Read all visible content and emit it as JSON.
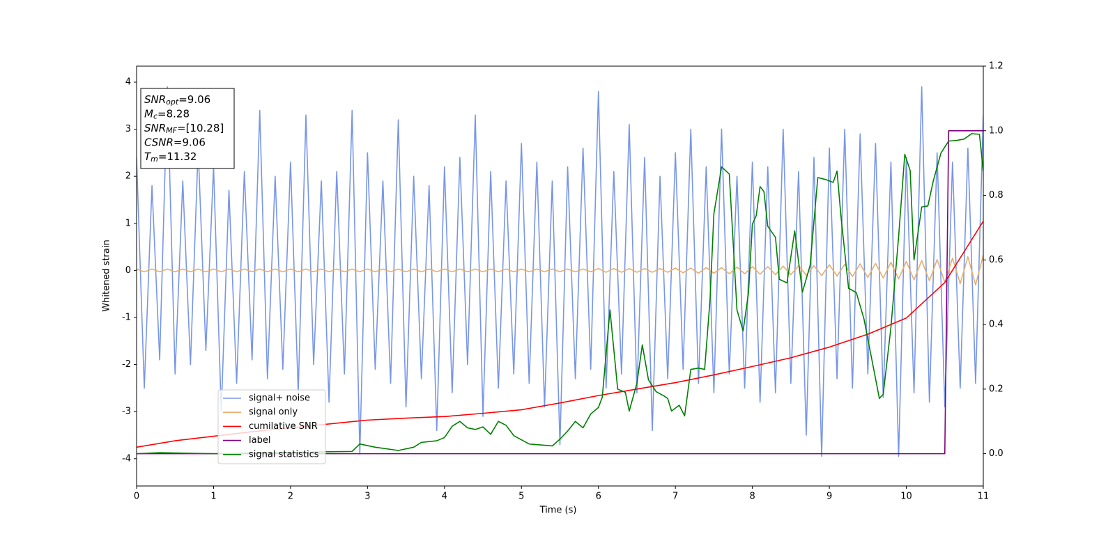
{
  "chart_data": {
    "type": "line",
    "xlabel": "Time (s)",
    "ylabel": "Whitened strain",
    "xlim": [
      0,
      11
    ],
    "ylim": [
      -4.58,
      4.34
    ],
    "y2lim": [
      -0.1,
      1.2
    ],
    "xticks": [
      0,
      1,
      2,
      3,
      4,
      5,
      6,
      7,
      8,
      9,
      10,
      11
    ],
    "yticks": [
      -4,
      -3,
      -2,
      -1,
      0,
      1,
      2,
      3,
      4
    ],
    "y2ticks": [
      {
        "value": 0,
        "label": "0.0"
      },
      0.2,
      0.4,
      0.6,
      0.8,
      {
        "value": 1,
        "label": "1.0"
      },
      1.2
    ],
    "legend": "lower left",
    "annotations": [
      {
        "main": "SNR",
        "sub": "opt",
        "rest": "=9.06"
      },
      {
        "main": "M",
        "sub": "c",
        "rest": "=8.28"
      },
      {
        "main": "SNR",
        "sub": "MF",
        "rest": "=[10.28]"
      },
      {
        "main": "CSNR",
        "sub": "",
        "rest": "=9.06"
      },
      {
        "main": "T",
        "sub": "m",
        "rest": "=11.32"
      }
    ],
    "x": [
      0,
      0.1,
      0.2,
      0.3,
      0.4,
      0.5,
      0.6,
      0.7,
      0.8,
      0.9,
      1,
      1.1,
      1.2,
      1.3,
      1.4,
      1.5,
      1.6,
      1.7,
      1.8,
      1.9,
      2,
      2.1,
      2.2,
      2.3,
      2.4,
      2.5,
      2.6,
      2.7,
      2.8,
      2.9,
      3,
      3.1,
      3.2,
      3.3,
      3.4,
      3.5,
      3.6,
      3.7,
      3.8,
      3.9,
      4,
      4.1,
      4.2,
      4.3,
      4.4,
      4.5,
      4.6,
      4.7,
      4.8,
      4.9,
      5,
      5.1,
      5.2,
      5.3,
      5.4,
      5.5,
      5.6,
      5.7,
      5.8,
      5.9,
      6,
      6.1,
      6.2,
      6.3,
      6.4,
      6.5,
      6.6,
      6.7,
      6.8,
      6.9,
      7,
      7.1,
      7.2,
      7.3,
      7.4,
      7.5,
      7.6,
      7.7,
      7.8,
      7.9,
      8,
      8.1,
      8.2,
      8.3,
      8.4,
      8.5,
      8.6,
      8.7,
      8.8,
      8.9,
      9,
      9.1,
      9.2,
      9.3,
      9.4,
      9.5,
      9.6,
      9.7,
      9.8,
      9.9,
      10,
      10.1,
      10.2,
      10.3,
      10.4,
      10.5,
      10.6,
      10.7,
      10.8,
      10.9,
      11
    ],
    "series": [
      {
        "name": "signal+ noise",
        "color": "#7896e8",
        "width": 1.6,
        "values": [
          2.4,
          -2.5,
          1.8,
          -1.9,
          3.9,
          -2.2,
          1.9,
          -2.0,
          2.6,
          -1.7,
          2.2,
          -3.0,
          1.7,
          -2.4,
          2.1,
          -1.9,
          3.4,
          -2.3,
          2.0,
          -2.1,
          2.3,
          -2.6,
          3.3,
          -2.0,
          1.9,
          -2.8,
          2.1,
          -2.2,
          3.4,
          -3.9,
          2.5,
          -2.1,
          1.9,
          -2.4,
          3.2,
          -2.9,
          2.0,
          -2.3,
          1.8,
          -3.4,
          2.2,
          -2.6,
          2.4,
          -2.0,
          3.3,
          -3.1,
          2.1,
          -2.5,
          1.9,
          -2.2,
          2.7,
          -2.4,
          2.3,
          -2.9,
          1.9,
          -3.7,
          2.2,
          -2.3,
          2.6,
          -2.1,
          3.8,
          -2.5,
          2.1,
          -2.2,
          3.1,
          -2.6,
          2.4,
          -3.4,
          2.0,
          -2.3,
          2.5,
          -2.1,
          3.0,
          -2.4,
          2.2,
          -2.6,
          3.0,
          -2.2,
          2.0,
          -2.5,
          2.3,
          -2.8,
          2.2,
          -2.6,
          3.0,
          -2.4,
          2.1,
          -3.5,
          2.4,
          -3.95,
          2.6,
          -2.3,
          3.0,
          -2.5,
          2.9,
          -2.2,
          2.7,
          -2.7,
          2.3,
          -3.95,
          2.4,
          -2.6,
          3.9,
          -2.8,
          2.5,
          -2.9,
          2.3,
          -2.5,
          2.6,
          -2.4,
          3.3
        ]
      },
      {
        "name": "signal only",
        "color": "#e6ae6e",
        "width": 1.6,
        "values": [
          0.03,
          -0.03,
          0.03,
          -0.03,
          0.03,
          -0.03,
          0.03,
          -0.03,
          0.03,
          -0.03,
          0.03,
          -0.03,
          0.03,
          -0.03,
          0.03,
          -0.03,
          0.03,
          -0.03,
          0.03,
          -0.03,
          0.03,
          -0.03,
          0.03,
          -0.03,
          0.03,
          -0.03,
          0.03,
          -0.03,
          0.03,
          -0.03,
          0.03,
          -0.03,
          0.03,
          -0.03,
          0.03,
          -0.03,
          0.03,
          -0.03,
          0.03,
          -0.03,
          0.03,
          -0.03,
          0.03,
          -0.03,
          0.03,
          -0.03,
          0.03,
          -0.03,
          0.03,
          -0.03,
          0.03,
          -0.03,
          0.03,
          -0.03,
          0.03,
          -0.03,
          0.03,
          -0.03,
          0.03,
          -0.03,
          0.04,
          -0.04,
          0.04,
          -0.04,
          0.04,
          -0.04,
          0.04,
          -0.04,
          0.04,
          -0.04,
          0.05,
          -0.05,
          0.05,
          -0.06,
          0.06,
          -0.06,
          0.06,
          -0.07,
          0.07,
          -0.07,
          0.08,
          -0.08,
          0.08,
          -0.09,
          0.09,
          -0.09,
          0.1,
          -0.1,
          0.1,
          -0.11,
          0.12,
          -0.12,
          0.13,
          -0.13,
          0.14,
          -0.15,
          0.15,
          -0.16,
          0.17,
          -0.18,
          0.19,
          -0.2,
          0.21,
          -0.22,
          0.23,
          -0.25,
          0.26,
          -0.28,
          0.29,
          -0.31,
          0.33
        ]
      },
      {
        "name": "cumilative SNR",
        "color": "#ff0000",
        "width": 1.6,
        "axis": "y2",
        "x": [
          0,
          0.5,
          1,
          1.5,
          2,
          2.5,
          3,
          3.5,
          4,
          4.5,
          5,
          5.5,
          6,
          6.5,
          7,
          7.5,
          8,
          8.5,
          9,
          9.5,
          10,
          10.5,
          11
        ],
        "values": [
          0.02,
          0.04,
          0.054,
          0.068,
          0.08,
          0.092,
          0.104,
          0.11,
          0.115,
          0.125,
          0.136,
          0.157,
          0.18,
          0.2,
          0.22,
          0.244,
          0.27,
          0.297,
          0.33,
          0.37,
          0.42,
          0.53,
          0.72
        ]
      },
      {
        "name": "label",
        "color": "#800080",
        "width": 1.6,
        "axis": "y2",
        "x": [
          0,
          10.5,
          10.55,
          11
        ],
        "values": [
          0,
          0,
          1,
          1
        ]
      },
      {
        "name": "signal statistics",
        "color": "#008000",
        "width": 1.6,
        "axis": "y2",
        "x": [
          0,
          0.3,
          1,
          2,
          2.5,
          2.8,
          2.9,
          3.1,
          3.4,
          3.6,
          3.7,
          3.9,
          4.0,
          4.1,
          4.2,
          4.3,
          4.4,
          4.5,
          4.6,
          4.7,
          4.8,
          4.9,
          5.1,
          5.4,
          5.5,
          5.6,
          5.7,
          5.8,
          5.9,
          6.0,
          6.05,
          6.15,
          6.25,
          6.35,
          6.4,
          6.5,
          6.57,
          6.65,
          6.75,
          6.85,
          6.9,
          6.95,
          7.05,
          7.12,
          7.2,
          7.3,
          7.38,
          7.45,
          7.5,
          7.6,
          7.7,
          7.8,
          7.88,
          7.95,
          8.0,
          8.05,
          8.1,
          8.15,
          8.2,
          8.3,
          8.35,
          8.45,
          8.55,
          8.65,
          8.75,
          8.85,
          8.95,
          9.05,
          9.1,
          9.15,
          9.25,
          9.35,
          9.45,
          9.55,
          9.65,
          9.7,
          9.8,
          9.9,
          9.98,
          10.05,
          10.1,
          10.2,
          10.28,
          10.35,
          10.45,
          10.55,
          10.65,
          10.75,
          10.85,
          10.95,
          11.0
        ],
        "values": [
          0,
          0.003,
          0,
          0.004,
          0.006,
          0.007,
          0.03,
          0.02,
          0.01,
          0.02,
          0.035,
          0.04,
          0.05,
          0.085,
          0.1,
          0.08,
          0.075,
          0.083,
          0.06,
          0.1,
          0.088,
          0.056,
          0.03,
          0.024,
          0.045,
          0.07,
          0.1,
          0.08,
          0.123,
          0.143,
          0.175,
          0.445,
          0.2,
          0.19,
          0.132,
          0.218,
          0.337,
          0.229,
          0.192,
          0.179,
          0.171,
          0.132,
          0.15,
          0.117,
          0.261,
          0.265,
          0.261,
          0.477,
          0.743,
          0.888,
          0.866,
          0.445,
          0.38,
          0.499,
          0.711,
          0.737,
          0.827,
          0.812,
          0.704,
          0.67,
          0.54,
          0.529,
          0.69,
          0.5,
          0.583,
          0.855,
          0.849,
          0.84,
          0.875,
          0.737,
          0.512,
          0.499,
          0.417,
          0.294,
          0.171,
          0.184,
          0.391,
          0.672,
          0.927,
          0.877,
          0.6,
          0.764,
          0.767,
          0.844,
          0.931,
          0.968,
          0.97,
          0.974,
          0.991,
          0.989,
          0.875
        ]
      }
    ]
  }
}
